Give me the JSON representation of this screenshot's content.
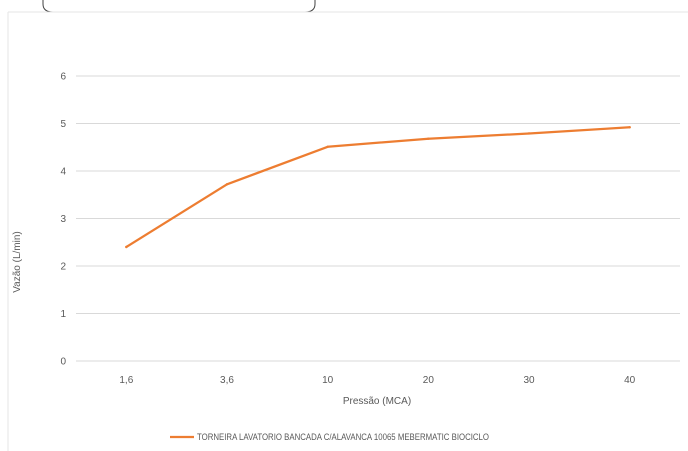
{
  "chart_data": {
    "type": "line",
    "title": "",
    "xlabel": "Pressão (MCA)",
    "ylabel": "Vazão (L/min)",
    "categories": [
      "1,6",
      "3,6",
      "10",
      "20",
      "30",
      "40"
    ],
    "yticks": [
      "0",
      "1",
      "2",
      "3",
      "4",
      "5",
      "6"
    ],
    "ylim": [
      0,
      6
    ],
    "grid": true,
    "legend_position": "bottom",
    "series": [
      {
        "name": "TORNEIRA LAVATORIO BANCADA C/ALAVANCA 10065 MEBERMATIC BIOCICLO",
        "color": "#ED7D31",
        "values": [
          2.4,
          3.72,
          4.51,
          4.68,
          4.79,
          4.92
        ]
      }
    ]
  }
}
